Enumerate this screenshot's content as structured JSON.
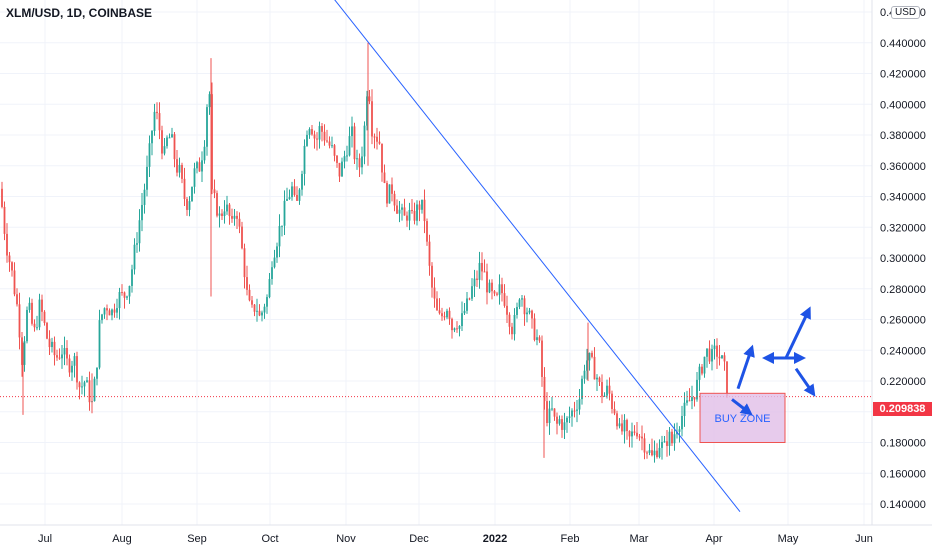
{
  "header": {
    "title": "XLM/USD, 1D, COINBASE",
    "currency": "USD"
  },
  "colors": {
    "up": "#26a69a",
    "down": "#ef5350",
    "trendline": "#2962ff",
    "zone_fill": "#e1bee7",
    "zone_border": "#ef5350",
    "arrow": "#1e53e5",
    "price_tag": "#f23645"
  },
  "chart_data": {
    "type": "candlestick",
    "title": "XLM/USD, 1D, COINBASE",
    "xlabel": "",
    "ylabel": "",
    "ylim": [
      0.13,
      0.46
    ],
    "x_ticks": [
      "Jul",
      "Aug",
      "Sep",
      "Oct",
      "Nov",
      "Dec",
      "2022",
      "Feb",
      "Mar",
      "Apr",
      "May",
      "Jun"
    ],
    "y_ticks": [
      "0.460000",
      "0.440000",
      "0.420000",
      "0.400000",
      "0.380000",
      "0.360000",
      "0.340000",
      "0.320000",
      "0.300000",
      "0.280000",
      "0.260000",
      "0.240000",
      "0.220000",
      "0.200000",
      "0.180000",
      "0.160000",
      "0.140000"
    ],
    "current_price": "0.209838",
    "price_path": [
      [
        0,
        0.345
      ],
      [
        6,
        0.31
      ],
      [
        12,
        0.29
      ],
      [
        18,
        0.265
      ],
      [
        22,
        0.235
      ],
      [
        28,
        0.27
      ],
      [
        34,
        0.25
      ],
      [
        40,
        0.27
      ],
      [
        48,
        0.245
      ],
      [
        56,
        0.235
      ],
      [
        62,
        0.24
      ],
      [
        68,
        0.23
      ],
      [
        74,
        0.235
      ],
      [
        80,
        0.215
      ],
      [
        85,
        0.22
      ],
      [
        92,
        0.205
      ],
      [
        96,
        0.225
      ],
      [
        100,
        0.26
      ],
      [
        106,
        0.27
      ],
      [
        112,
        0.265
      ],
      [
        118,
        0.275
      ],
      [
        124,
        0.275
      ],
      [
        130,
        0.285
      ],
      [
        136,
        0.31
      ],
      [
        142,
        0.335
      ],
      [
        148,
        0.36
      ],
      [
        154,
        0.395
      ],
      [
        158,
        0.39
      ],
      [
        164,
        0.365
      ],
      [
        168,
        0.38
      ],
      [
        172,
        0.375
      ],
      [
        176,
        0.36
      ],
      [
        180,
        0.355
      ],
      [
        184,
        0.34
      ],
      [
        188,
        0.335
      ],
      [
        194,
        0.355
      ],
      [
        200,
        0.36
      ],
      [
        205,
        0.38
      ],
      [
        209,
        0.42
      ],
      [
        212,
        0.34
      ],
      [
        216,
        0.335
      ],
      [
        220,
        0.325
      ],
      [
        224,
        0.335
      ],
      [
        228,
        0.33
      ],
      [
        232,
        0.32
      ],
      [
        236,
        0.335
      ],
      [
        240,
        0.315
      ],
      [
        244,
        0.295
      ],
      [
        248,
        0.27
      ],
      [
        252,
        0.265
      ],
      [
        256,
        0.27
      ],
      [
        260,
        0.26
      ],
      [
        264,
        0.27
      ],
      [
        268,
        0.275
      ],
      [
        272,
        0.3
      ],
      [
        276,
        0.31
      ],
      [
        280,
        0.32
      ],
      [
        284,
        0.33
      ],
      [
        288,
        0.34
      ],
      [
        292,
        0.345
      ],
      [
        296,
        0.33
      ],
      [
        300,
        0.35
      ],
      [
        304,
        0.37
      ],
      [
        308,
        0.39
      ],
      [
        312,
        0.385
      ],
      [
        316,
        0.375
      ],
      [
        320,
        0.385
      ],
      [
        324,
        0.38
      ],
      [
        328,
        0.375
      ],
      [
        332,
        0.37
      ],
      [
        336,
        0.36
      ],
      [
        340,
        0.355
      ],
      [
        344,
        0.365
      ],
      [
        348,
        0.375
      ],
      [
        352,
        0.38
      ],
      [
        356,
        0.36
      ],
      [
        360,
        0.36
      ],
      [
        364,
        0.38
      ],
      [
        368,
        0.42
      ],
      [
        372,
        0.385
      ],
      [
        376,
        0.38
      ],
      [
        380,
        0.375
      ],
      [
        384,
        0.345
      ],
      [
        388,
        0.34
      ],
      [
        392,
        0.345
      ],
      [
        396,
        0.335
      ],
      [
        400,
        0.33
      ],
      [
        404,
        0.325
      ],
      [
        408,
        0.33
      ],
      [
        412,
        0.325
      ],
      [
        416,
        0.33
      ],
      [
        420,
        0.335
      ],
      [
        424,
        0.33
      ],
      [
        428,
        0.3
      ],
      [
        432,
        0.28
      ],
      [
        436,
        0.265
      ],
      [
        440,
        0.26
      ],
      [
        444,
        0.265
      ],
      [
        448,
        0.27
      ],
      [
        452,
        0.255
      ],
      [
        456,
        0.26
      ],
      [
        460,
        0.255
      ],
      [
        464,
        0.265
      ],
      [
        468,
        0.27
      ],
      [
        472,
        0.28
      ],
      [
        476,
        0.285
      ],
      [
        480,
        0.295
      ],
      [
        484,
        0.29
      ],
      [
        488,
        0.28
      ],
      [
        492,
        0.275
      ],
      [
        496,
        0.27
      ],
      [
        500,
        0.28
      ],
      [
        504,
        0.275
      ],
      [
        508,
        0.265
      ],
      [
        512,
        0.255
      ],
      [
        516,
        0.26
      ],
      [
        520,
        0.28
      ],
      [
        524,
        0.27
      ],
      [
        528,
        0.265
      ],
      [
        532,
        0.255
      ],
      [
        536,
        0.25
      ],
      [
        540,
        0.24
      ],
      [
        544,
        0.205
      ],
      [
        548,
        0.195
      ],
      [
        552,
        0.2
      ],
      [
        556,
        0.19
      ],
      [
        560,
        0.195
      ],
      [
        564,
        0.19
      ],
      [
        568,
        0.195
      ],
      [
        572,
        0.2
      ],
      [
        576,
        0.205
      ],
      [
        580,
        0.21
      ],
      [
        584,
        0.23
      ],
      [
        588,
        0.235
      ],
      [
        592,
        0.23
      ],
      [
        596,
        0.225
      ],
      [
        600,
        0.215
      ],
      [
        604,
        0.21
      ],
      [
        608,
        0.215
      ],
      [
        612,
        0.205
      ],
      [
        616,
        0.2
      ],
      [
        620,
        0.185
      ],
      [
        624,
        0.19
      ],
      [
        628,
        0.18
      ],
      [
        632,
        0.185
      ],
      [
        636,
        0.19
      ],
      [
        640,
        0.185
      ],
      [
        644,
        0.18
      ],
      [
        648,
        0.175
      ],
      [
        652,
        0.17
      ],
      [
        656,
        0.175
      ],
      [
        660,
        0.18
      ],
      [
        664,
        0.175
      ],
      [
        668,
        0.185
      ],
      [
        672,
        0.18
      ],
      [
        676,
        0.19
      ],
      [
        680,
        0.195
      ],
      [
        684,
        0.2
      ],
      [
        688,
        0.205
      ],
      [
        692,
        0.21
      ],
      [
        696,
        0.215
      ],
      [
        700,
        0.225
      ],
      [
        704,
        0.235
      ],
      [
        708,
        0.24
      ],
      [
        712,
        0.235
      ],
      [
        716,
        0.24
      ],
      [
        720,
        0.235
      ],
      [
        724,
        0.23
      ],
      [
        728,
        0.21
      ]
    ],
    "trendline": [
      [
        320,
        0.48
      ],
      [
        740,
        0.135
      ]
    ],
    "annotations": [
      {
        "type": "zone",
        "label": "BUY ZONE",
        "from": [
          700,
          0.212
        ],
        "to": [
          785,
          0.18
        ]
      },
      {
        "type": "arrow",
        "direction": "up",
        "from": [
          738,
          0.215
        ],
        "to": [
          751,
          0.24
        ]
      },
      {
        "type": "arrow",
        "direction": "down",
        "from": [
          732,
          0.208
        ],
        "to": [
          748,
          0.2
        ]
      },
      {
        "type": "arrow",
        "direction": "horizontal",
        "from": [
          768,
          0.235
        ],
        "to": [
          800,
          0.235
        ]
      },
      {
        "type": "arrow",
        "direction": "up",
        "from": [
          786,
          0.235
        ],
        "to": [
          808,
          0.265
        ]
      },
      {
        "type": "arrow",
        "direction": "down-right",
        "from": [
          796,
          0.228
        ],
        "to": [
          812,
          0.213
        ]
      }
    ]
  }
}
